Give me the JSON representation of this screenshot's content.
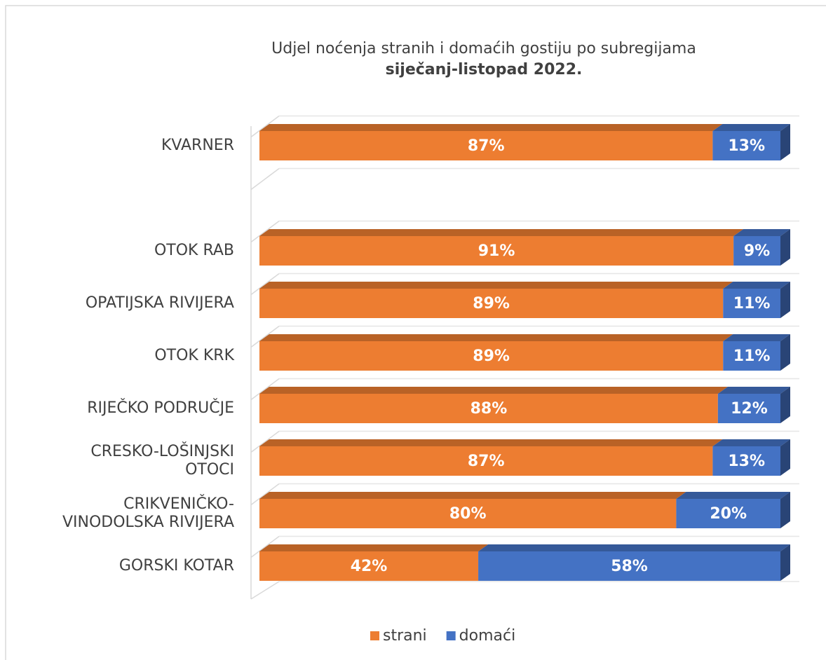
{
  "chart_data": {
    "type": "bar",
    "orientation": "horizontal",
    "stacked": true,
    "title": "Udjel noćenja stranih i domaćih gostiju po subregijama",
    "subtitle": "siječanj-listopad 2022.",
    "categories": [
      "KVARNER",
      null,
      "OTOK RAB",
      "OPATIJSKA RIVIJERA",
      "OTOK KRK",
      "RIJEČKO PODRUČJE",
      "CRESKO-LOŠINJSKI OTOCI",
      "CRIKVENIČKO-VINODOLSKA RIVIJERA",
      "GORSKI KOTAR"
    ],
    "series": [
      {
        "name": "strani",
        "color": "#ed7d31",
        "values": [
          87,
          null,
          91,
          89,
          89,
          88,
          87,
          80,
          42
        ],
        "value_labels": [
          "87%",
          null,
          "91%",
          "89%",
          "89%",
          "88%",
          "87%",
          "80%",
          "42%"
        ]
      },
      {
        "name": "domaći",
        "color": "#4472c4",
        "values": [
          13,
          null,
          9,
          11,
          11,
          12,
          13,
          20,
          58
        ],
        "value_labels": [
          "13%",
          null,
          "9%",
          "11%",
          "11%",
          "12%",
          "13%",
          "20%",
          "58%"
        ]
      }
    ],
    "xlim": [
      0,
      100
    ],
    "legend": "bottom"
  }
}
